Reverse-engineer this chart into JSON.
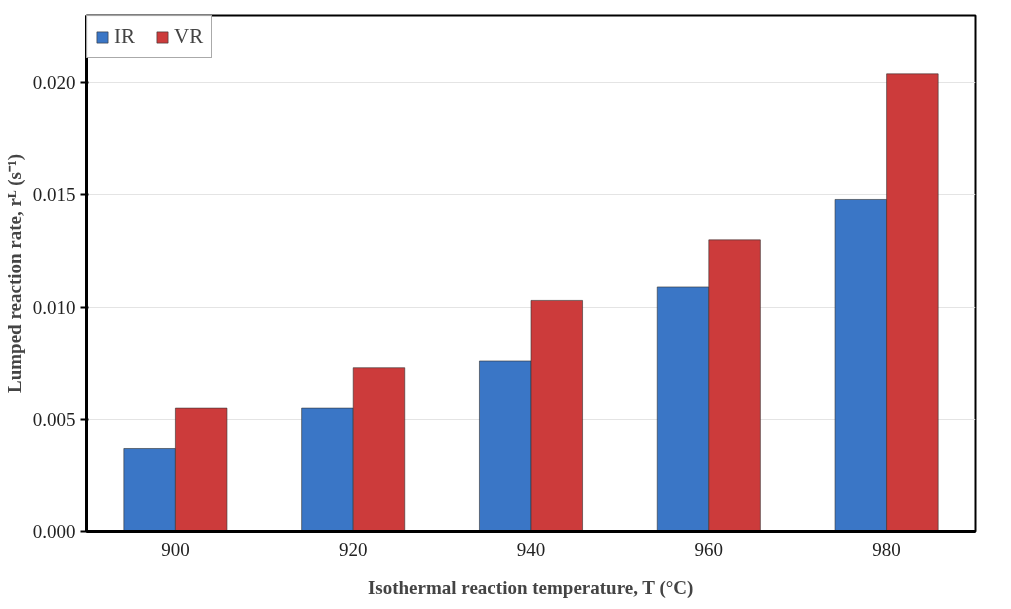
{
  "chart_data": {
    "type": "bar",
    "xlabel": "Isothermal reaction temperature, T (°C)",
    "ylabel": "Lumped reaction rate, rᴸ (s⁻¹)",
    "categories": [
      "900",
      "920",
      "940",
      "960",
      "980"
    ],
    "series": [
      {
        "name": "IR",
        "color": "#3a76c6",
        "values": [
          0.0037,
          0.0055,
          0.0076,
          0.0109,
          0.0148
        ]
      },
      {
        "name": "VR",
        "color": "#cc3b3b",
        "values": [
          0.0055,
          0.0073,
          0.0103,
          0.013,
          0.0204
        ]
      }
    ],
    "ylim": [
      0,
      0.023
    ],
    "yticks": [
      {
        "value": 0,
        "label": "0.000"
      },
      {
        "value": 0.005,
        "label": "0.005"
      },
      {
        "value": 0.01,
        "label": "0.010"
      },
      {
        "value": 0.015,
        "label": "0.015"
      },
      {
        "value": 0.02,
        "label": "0.020"
      }
    ],
    "grid": "y",
    "legend": "top left"
  }
}
